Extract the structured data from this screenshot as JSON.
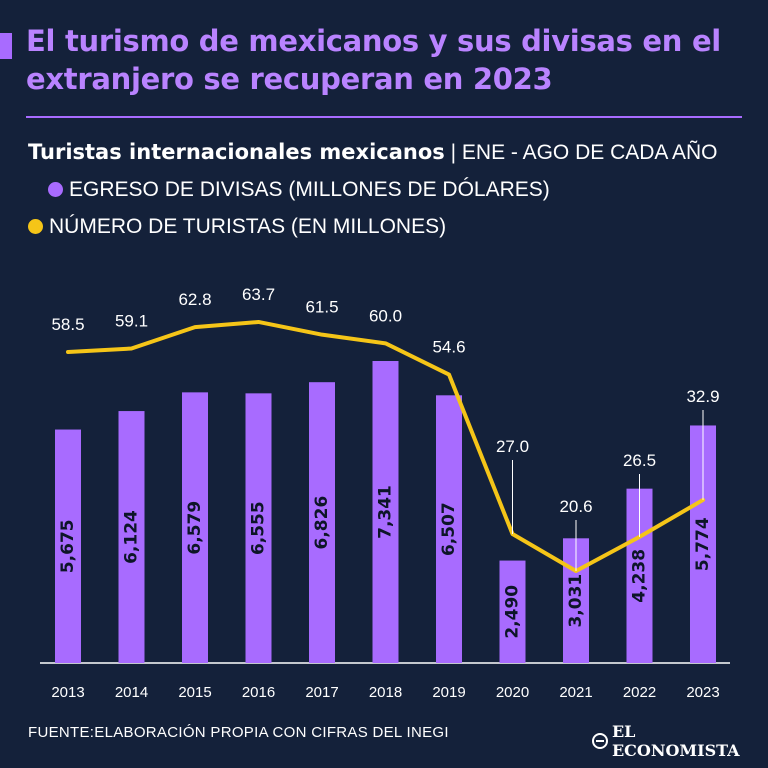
{
  "header": {
    "title": "El turismo de mexicanos y sus divisas en el extranjero se recuperan en 2023",
    "subtitle_bold": "Turistas internacionales mexicanos",
    "subtitle_rest": "| ENE - AGO DE CADA AÑO",
    "legend_bars": "EGRESO DE DIVISAS (MILLONES DE DÓLARES)",
    "legend_line": "NÚMERO DE TURISTAS (EN MILLONES)"
  },
  "footer": {
    "source": "FUENTE:ELABORACIÓN PROPIA CON CIFRAS DEL INEGI",
    "logo": "EL ECONOMISTA"
  },
  "colors": {
    "background": "#14213a",
    "bars": "#a86bff",
    "line": "#f5c518",
    "bar_label": "#0d1528"
  },
  "chart_data": {
    "type": "bar",
    "categories": [
      "2013",
      "2014",
      "2015",
      "2016",
      "2017",
      "2018",
      "2019",
      "2020",
      "2021",
      "2022",
      "2023"
    ],
    "series": [
      {
        "name": "EGRESO DE DIVISAS (MILLONES DE DÓLARES)",
        "type": "bar",
        "values": [
          5675,
          6124,
          6579,
          6555,
          6826,
          7341,
          6507,
          2490,
          3031,
          4238,
          5774
        ],
        "labels": [
          "5,675",
          "6,124",
          "6,579",
          "6,555",
          "6,826",
          "7,341",
          "6,507",
          "2,490",
          "3,031",
          "4,238",
          "5,774"
        ]
      },
      {
        "name": "NÚMERO DE TURISTAS (EN MILLONES)",
        "type": "line",
        "values": [
          58.5,
          59.1,
          62.8,
          63.7,
          61.5,
          60.0,
          54.6,
          27.0,
          20.6,
          26.5,
          32.9
        ],
        "labels": [
          "58.5",
          "59.1",
          "62.8",
          "63.7",
          "61.5",
          "60.0",
          "54.6",
          "27.0",
          "20.6",
          "26.5",
          "32.9"
        ]
      }
    ],
    "ylim_bars": [
      0,
      7341
    ],
    "ylim_line": [
      0,
      63.7
    ],
    "legend": "top-left"
  }
}
